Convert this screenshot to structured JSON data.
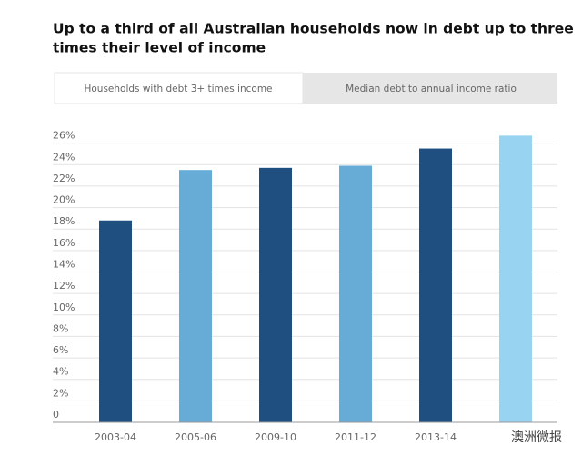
{
  "chart_data": {
    "type": "bar",
    "title": "Up to a third of all Australian households now in debt up to three times their level of income",
    "tabs": [
      "Households with debt 3+ times income",
      "Median debt to annual income ratio"
    ],
    "categories": [
      "2003-04",
      "2005-06",
      "2009-10",
      "2011-12",
      "2013-14",
      null
    ],
    "values": [
      18.8,
      23.5,
      23.7,
      23.9,
      25.5,
      26.7
    ],
    "colors": [
      "#1f4e80",
      "#67acd6",
      "#1f4e80",
      "#67acd6",
      "#1f4e80",
      "#99d3f2"
    ],
    "ylim": [
      0,
      28
    ],
    "yticks": [
      0,
      {
        "value": 2,
        "label": "2%"
      },
      {
        "value": 4,
        "label": "4%"
      },
      {
        "value": 6,
        "label": "6%"
      },
      {
        "value": 8,
        "label": "8%"
      },
      {
        "value": 10,
        "label": "10%"
      },
      {
        "value": 12,
        "label": "12%"
      },
      {
        "value": 14,
        "label": "14%"
      },
      {
        "value": 16,
        "label": "16%"
      },
      {
        "value": 18,
        "label": "18%"
      },
      {
        "value": 20,
        "label": "20%"
      },
      {
        "value": 22,
        "label": "22%"
      },
      {
        "value": 24,
        "label": "24%"
      },
      {
        "value": 26,
        "label": "26%"
      }
    ],
    "grid": true,
    "watermark": "澳洲微报"
  }
}
